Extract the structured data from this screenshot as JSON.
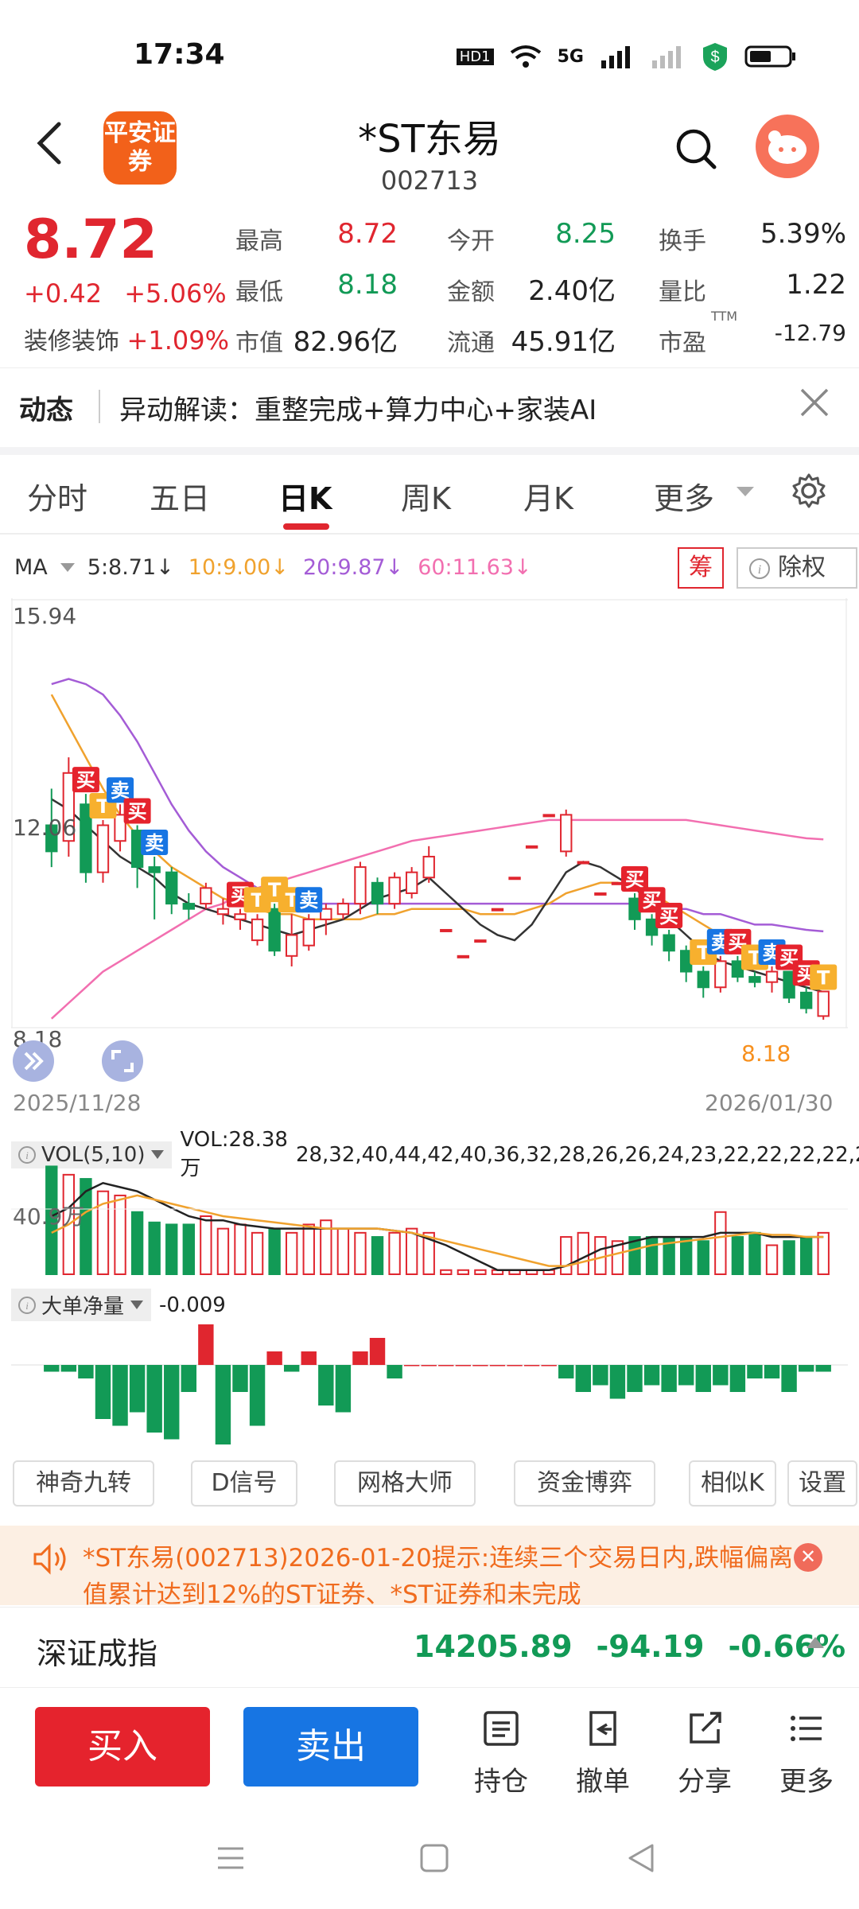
{
  "status_bar": {
    "time": "17:34",
    "hd": "HD1",
    "network": "5G"
  },
  "header": {
    "logo_text": "平安证券",
    "title": "*ST东易",
    "code": "002713"
  },
  "quote": {
    "price": "8.72",
    "change": "+0.42",
    "change_pct": "+5.06%",
    "sector_name": "装修装饰",
    "sector_pct": "+1.09%",
    "stats": [
      {
        "label": "最高",
        "value": "8.72",
        "color": "#e0262f"
      },
      {
        "label": "今开",
        "value": "8.25",
        "color": "#129a56"
      },
      {
        "label": "换手",
        "value": "5.39%",
        "color": "#222222"
      },
      {
        "label": "最低",
        "value": "8.18",
        "color": "#129a56"
      },
      {
        "label": "金额",
        "value": "2.40亿",
        "color": "#222222"
      },
      {
        "label": "量比",
        "value": "1.22",
        "color": "#222222"
      },
      {
        "label": "市值",
        "value": "82.96亿",
        "color": "#222222"
      },
      {
        "label": "流通",
        "value": "45.91亿",
        "color": "#222222"
      },
      {
        "label": "市盈",
        "value": "-12.79",
        "color": "#222222",
        "sup": "TTM"
      }
    ]
  },
  "news": {
    "tag": "动态",
    "text": "异动解读：重整完成+算力中心+家装AI"
  },
  "tabs": [
    "分时",
    "五日",
    "日K",
    "周K",
    "月K",
    "更多"
  ],
  "active_tab": "日K",
  "ma": {
    "label": "MA",
    "items": [
      {
        "text": "5:8.71",
        "color": "#333333"
      },
      {
        "text": "10:9.00",
        "color": "#f0a22e"
      },
      {
        "text": "20:9.87",
        "color": "#a45cd6"
      },
      {
        "text": "60:11.63",
        "color": "#f26fb0"
      }
    ],
    "chou": "筹",
    "chuquan": "除权"
  },
  "chart_data": {
    "type": "candlestick",
    "y_top_label": "15.94",
    "y_mid_label": "12.06",
    "y_bottom_label": "8.18",
    "low_marker": "8.18",
    "x_start": "2025/11/28",
    "x_end": "2026/01/30",
    "ylim": [
      8.18,
      15.94
    ],
    "candles": [
      {
        "o": 11.9,
        "c": 11.4,
        "h": 12.6,
        "l": 11.1
      },
      {
        "o": 11.6,
        "c": 12.9,
        "h": 13.2,
        "l": 11.3
      },
      {
        "o": 12.3,
        "c": 11.0,
        "h": 12.5,
        "l": 10.8
      },
      {
        "o": 11.0,
        "c": 11.9,
        "h": 12.0,
        "l": 10.8
      },
      {
        "o": 11.6,
        "c": 12.1,
        "h": 12.3,
        "l": 11.4
      },
      {
        "o": 11.8,
        "c": 11.1,
        "h": 11.9,
        "l": 10.7
      },
      {
        "o": 11.1,
        "c": 11.0,
        "h": 11.3,
        "l": 10.1
      },
      {
        "o": 11.0,
        "c": 10.4,
        "h": 11.1,
        "l": 10.2
      },
      {
        "o": 10.4,
        "c": 10.3,
        "h": 10.6,
        "l": 10.1
      },
      {
        "o": 10.4,
        "c": 10.7,
        "h": 10.8,
        "l": 10.3
      },
      {
        "o": 10.2,
        "c": 10.3,
        "h": 10.5,
        "l": 10.0
      },
      {
        "o": 10.1,
        "c": 10.2,
        "h": 10.3,
        "l": 9.9
      },
      {
        "o": 9.7,
        "c": 10.1,
        "h": 10.2,
        "l": 9.6
      },
      {
        "o": 10.3,
        "c": 9.5,
        "h": 10.4,
        "l": 9.4
      },
      {
        "o": 9.4,
        "c": 9.8,
        "h": 10.2,
        "l": 9.2
      },
      {
        "o": 9.6,
        "c": 10.1,
        "h": 10.2,
        "l": 9.5
      },
      {
        "o": 10.1,
        "c": 10.3,
        "h": 10.4,
        "l": 9.8
      },
      {
        "o": 10.2,
        "c": 10.4,
        "h": 10.5,
        "l": 10.1
      },
      {
        "o": 10.4,
        "c": 11.1,
        "h": 11.2,
        "l": 10.2
      },
      {
        "o": 10.8,
        "c": 10.4,
        "h": 10.9,
        "l": 10.2
      },
      {
        "o": 10.4,
        "c": 10.9,
        "h": 11.0,
        "l": 10.3
      },
      {
        "o": 10.6,
        "c": 11.0,
        "h": 11.1,
        "l": 10.5
      },
      {
        "o": 10.9,
        "c": 11.3,
        "h": 11.5,
        "l": 10.8
      },
      {
        "o": 9.9,
        "c": 9.9,
        "h": 9.9,
        "l": 9.9
      },
      {
        "o": 9.4,
        "c": 9.4,
        "h": 9.4,
        "l": 9.4
      },
      {
        "o": 9.7,
        "c": 9.7,
        "h": 9.7,
        "l": 9.7
      },
      {
        "o": 10.3,
        "c": 10.3,
        "h": 10.3,
        "l": 10.3
      },
      {
        "o": 10.9,
        "c": 10.9,
        "h": 10.9,
        "l": 10.9
      },
      {
        "o": 11.5,
        "c": 11.5,
        "h": 11.5,
        "l": 11.5
      },
      {
        "o": 12.1,
        "c": 12.1,
        "h": 12.1,
        "l": 12.1
      },
      {
        "o": 11.4,
        "c": 12.1,
        "h": 12.2,
        "l": 11.3
      },
      {
        "o": 11.2,
        "c": 11.2,
        "h": 11.2,
        "l": 11.2
      },
      {
        "o": 10.6,
        "c": 10.6,
        "h": 10.6,
        "l": 10.6
      },
      {
        "o": 10.8,
        "c": 10.8,
        "h": 10.8,
        "l": 10.8
      },
      {
        "o": 10.5,
        "c": 10.1,
        "h": 10.6,
        "l": 9.9
      },
      {
        "o": 10.1,
        "c": 9.8,
        "h": 10.2,
        "l": 9.6
      },
      {
        "o": 9.8,
        "c": 9.5,
        "h": 9.9,
        "l": 9.3
      },
      {
        "o": 9.5,
        "c": 9.1,
        "h": 9.6,
        "l": 8.9
      },
      {
        "o": 9.1,
        "c": 8.8,
        "h": 9.2,
        "l": 8.6
      },
      {
        "o": 8.8,
        "c": 9.3,
        "h": 9.4,
        "l": 8.7
      },
      {
        "o": 9.3,
        "c": 9.0,
        "h": 9.4,
        "l": 8.9
      },
      {
        "o": 9.0,
        "c": 8.9,
        "h": 9.1,
        "l": 8.8
      },
      {
        "o": 8.9,
        "c": 9.1,
        "h": 9.2,
        "l": 8.7
      },
      {
        "o": 9.1,
        "c": 8.6,
        "h": 9.1,
        "l": 8.5
      },
      {
        "o": 8.7,
        "c": 8.4,
        "h": 8.8,
        "l": 8.3
      },
      {
        "o": 8.25,
        "c": 8.72,
        "h": 8.72,
        "l": 8.18
      }
    ],
    "ma5": [
      12.4,
      12.2,
      11.9,
      11.6,
      11.3,
      11.1,
      10.9,
      10.6,
      10.4,
      10.3,
      10.2,
      10.1,
      10.0,
      9.9,
      9.8,
      9.9,
      10.0,
      10.1,
      10.3,
      10.5,
      10.6,
      10.7,
      10.9,
      10.6,
      10.3,
      10.0,
      9.8,
      9.7,
      10.0,
      10.5,
      11.0,
      11.2,
      11.1,
      10.9,
      10.7,
      10.4,
      10.1,
      9.8,
      9.5,
      9.3,
      9.2,
      9.1,
      9.0,
      8.9,
      8.8,
      8.71
    ],
    "ma10": [
      14.4,
      13.8,
      13.2,
      12.6,
      12.1,
      11.7,
      11.4,
      11.1,
      10.9,
      10.7,
      10.5,
      10.4,
      10.3,
      10.2,
      10.2,
      10.1,
      10.1,
      10.1,
      10.1,
      10.2,
      10.2,
      10.3,
      10.3,
      10.3,
      10.3,
      10.2,
      10.2,
      10.2,
      10.3,
      10.4,
      10.6,
      10.7,
      10.8,
      10.8,
      10.7,
      10.6,
      10.4,
      10.2,
      10.0,
      9.8,
      9.6,
      9.4,
      9.3,
      9.2,
      9.1,
      9.0
    ],
    "ma20": [
      14.6,
      14.7,
      14.6,
      14.4,
      14.0,
      13.5,
      12.9,
      12.3,
      11.8,
      11.4,
      11.1,
      10.9,
      10.7,
      10.6,
      10.5,
      10.4,
      10.4,
      10.4,
      10.4,
      10.4,
      10.4,
      10.4,
      10.4,
      10.4,
      10.4,
      10.4,
      10.4,
      10.4,
      10.4,
      10.4,
      10.4,
      10.4,
      10.4,
      10.4,
      10.4,
      10.4,
      10.3,
      10.3,
      10.2,
      10.2,
      10.1,
      10.0,
      10.0,
      9.95,
      9.9,
      9.87
    ],
    "ma60": [
      8.2,
      8.5,
      8.8,
      9.1,
      9.3,
      9.5,
      9.7,
      9.9,
      10.1,
      10.3,
      10.4,
      10.6,
      10.7,
      10.8,
      10.9,
      11.0,
      11.1,
      11.2,
      11.3,
      11.4,
      11.5,
      11.6,
      11.65,
      11.7,
      11.75,
      11.8,
      11.85,
      11.9,
      11.95,
      12.0,
      12.0,
      12.0,
      12.0,
      12.0,
      12.0,
      12.0,
      12.0,
      12.0,
      11.95,
      11.9,
      11.85,
      11.8,
      11.75,
      11.7,
      11.65,
      11.63
    ],
    "signals": [
      {
        "i": 2,
        "text": "买",
        "type": "buy"
      },
      {
        "i": 3,
        "text": "T",
        "type": "t"
      },
      {
        "i": 4,
        "text": "卖",
        "type": "sell"
      },
      {
        "i": 6,
        "text": "卖",
        "type": "sell"
      },
      {
        "i": 5,
        "text": "买",
        "type": "buy"
      },
      {
        "i": 11,
        "text": "买",
        "type": "buy"
      },
      {
        "i": 12,
        "text": "T",
        "type": "t"
      },
      {
        "i": 13,
        "text": "T",
        "type": "t"
      },
      {
        "i": 14,
        "text": "T",
        "type": "t"
      },
      {
        "i": 15,
        "text": "卖",
        "type": "sell"
      },
      {
        "i": 34,
        "text": "买",
        "type": "buy"
      },
      {
        "i": 35,
        "text": "买",
        "type": "buy"
      },
      {
        "i": 36,
        "text": "买",
        "type": "buy"
      },
      {
        "i": 38,
        "text": "T",
        "type": "t"
      },
      {
        "i": 39,
        "text": "卖",
        "type": "sell"
      },
      {
        "i": 40,
        "text": "买",
        "type": "buy"
      },
      {
        "i": 41,
        "text": "T",
        "type": "t"
      },
      {
        "i": 42,
        "text": "卖",
        "type": "sell"
      },
      {
        "i": 43,
        "text": "买",
        "type": "buy"
      },
      {
        "i": 44,
        "text": "买",
        "type": "buy"
      },
      {
        "i": 45,
        "text": "T",
        "type": "t"
      }
    ]
  },
  "volume": {
    "label": "VOL(5,10)",
    "vol": "VOL:28.38万",
    "ma5": [
      28,
      32,
      40,
      44,
      42,
      40,
      36,
      32,
      28,
      26,
      26,
      24,
      23,
      22,
      22,
      22,
      22,
      22,
      22,
      22,
      21,
      20,
      17,
      14,
      10,
      6,
      2,
      2,
      2,
      2,
      4,
      8,
      12,
      14,
      16,
      18,
      18,
      18,
      18,
      20,
      20,
      20,
      18,
      18,
      18,
      18
    ],
    "ma10": [
      20,
      24,
      30,
      34,
      36,
      38,
      36,
      34,
      32,
      30,
      28,
      27,
      26,
      25,
      24,
      23,
      22,
      22,
      22,
      22,
      21,
      20,
      18,
      16,
      14,
      12,
      10,
      8,
      6,
      4,
      4,
      6,
      8,
      10,
      12,
      14,
      15,
      16,
      17,
      18,
      19,
      20,
      19,
      19,
      18,
      18
    ],
    "axis_label": "40.9万",
    "bars": [
      52,
      48,
      46,
      40,
      38,
      30,
      25,
      24,
      24,
      28,
      22,
      24,
      20,
      22,
      20,
      24,
      26,
      22,
      20,
      18,
      20,
      22,
      20,
      2,
      2,
      2,
      2,
      2,
      2,
      2,
      18,
      20,
      18,
      16,
      18,
      18,
      18,
      18,
      16,
      30,
      18,
      20,
      14,
      16,
      18,
      20
    ]
  },
  "dadan": {
    "label": "大单净量",
    "value": "-0.009",
    "bars": [
      -1,
      -1,
      -2,
      -8,
      -9,
      -7,
      -10,
      -11,
      -4,
      6,
      -12,
      -4,
      -9,
      2,
      -1,
      2,
      -6,
      -7,
      2,
      4,
      -2,
      0,
      0,
      0,
      0,
      0,
      0,
      0,
      0,
      0,
      -2,
      -4,
      -3,
      -5,
      -4,
      -3,
      -4,
      -3,
      -4,
      -3,
      -4,
      -2,
      -2,
      -4,
      -1,
      -1
    ]
  },
  "tools": [
    "神奇九转",
    "D信号",
    "网格大师",
    "资金博弈",
    "相似K",
    "设置"
  ],
  "alert": {
    "text": "*ST东易(002713)2026-01-20提示:连续三个交易日内,跌幅偏离值累计达到12%的ST证券、*ST证券和未完成"
  },
  "index": {
    "name": "深证成指",
    "value": "14205.89",
    "change": "-94.19",
    "pct": "-0.66%"
  },
  "bottom": {
    "buy": "买入",
    "sell": "卖出",
    "actions": [
      "持仓",
      "撤单",
      "分享",
      "更多"
    ]
  },
  "colors": {
    "up": "#e0262f",
    "down": "#129a56",
    "buy_bg": "#e5232d",
    "sell_bg": "#1775e3",
    "t_bg": "#f7b02e"
  }
}
